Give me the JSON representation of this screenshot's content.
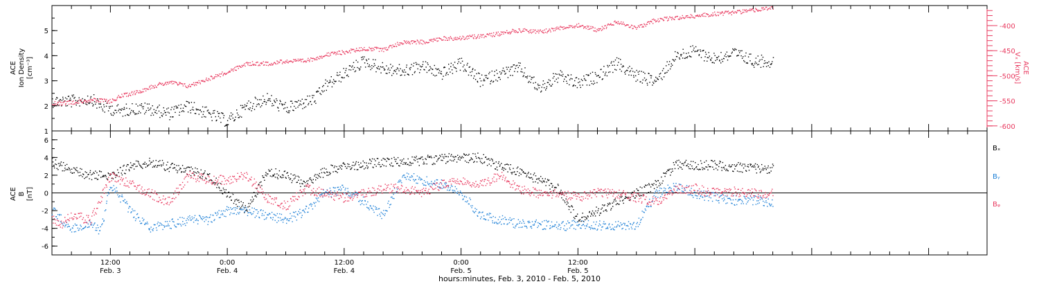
{
  "chart_data": [
    {
      "type": "scatter",
      "panel": "top",
      "ylabel_left_lines": [
        "ACE",
        "Ion Density",
        "[cm⁻³]"
      ],
      "ylabel_right_lines": [
        "ACE",
        "Vₓ [km/s]"
      ],
      "y_left_lim": [
        1,
        6
      ],
      "y_left_ticks": [
        "1",
        "2",
        "3",
        "4",
        "5"
      ],
      "y_right_lim": [
        -610,
        -360
      ],
      "y_right_ticks": [
        "-400",
        "-450",
        "-500",
        "-550",
        "-600"
      ],
      "colors": {
        "density": "#000000",
        "vx": "#e8385e"
      },
      "series": [
        {
          "key": "density",
          "axis": "left",
          "x_hours": [
            0,
            2,
            4,
            5,
            7,
            8,
            10,
            12,
            14,
            16,
            18,
            20,
            22,
            24,
            27,
            28,
            30,
            32,
            34,
            36,
            38,
            40,
            42,
            44,
            46,
            48,
            50,
            52,
            54,
            56,
            58,
            60,
            62,
            64,
            66,
            68,
            70,
            72,
            74
          ],
          "values": [
            2.2,
            2.2,
            2.3,
            2.0,
            1.8,
            1.9,
            1.9,
            1.7,
            2.0,
            1.7,
            1.4,
            2.0,
            2.3,
            1.9,
            2.3,
            2.8,
            3.3,
            3.8,
            3.5,
            3.4,
            3.6,
            3.3,
            3.7,
            3.0,
            3.3,
            3.5,
            2.7,
            3.2,
            2.9,
            3.2,
            3.7,
            3.2,
            3.0,
            4.0,
            4.2,
            3.9,
            4.1,
            3.8,
            3.8
          ]
        },
        {
          "key": "vx",
          "axis": "right",
          "x_hours": [
            0,
            2,
            4,
            6,
            7,
            9,
            10,
            12,
            14,
            16,
            18,
            20,
            22,
            24,
            26,
            28,
            30,
            32,
            34,
            36,
            38,
            40,
            42,
            44,
            46,
            48,
            50,
            52,
            54,
            56,
            58,
            60,
            62,
            64,
            66,
            68,
            70,
            72,
            74
          ],
          "values": [
            -555,
            -552,
            -548,
            -550,
            -540,
            -530,
            -522,
            -512,
            -520,
            -505,
            -492,
            -475,
            -475,
            -470,
            -470,
            -458,
            -452,
            -445,
            -447,
            -432,
            -432,
            -425,
            -424,
            -420,
            -415,
            -408,
            -412,
            -405,
            -398,
            -408,
            -392,
            -404,
            -388,
            -384,
            -380,
            -376,
            -373,
            -368,
            -365
          ]
        }
      ]
    },
    {
      "type": "scatter",
      "panel": "bottom",
      "ylabel_lines": [
        "ACE",
        "B",
        "[nT]"
      ],
      "ylim": [
        -7,
        7
      ],
      "y_ticks": [
        "6",
        "4",
        "2",
        "0",
        "-2",
        "-4",
        "-6"
      ],
      "zero_line": true,
      "legend": [
        {
          "key": "bx",
          "label": "Bₓ",
          "color": "#000000"
        },
        {
          "key": "by",
          "label": "Bᵧ",
          "color": "#1c7fd6"
        },
        {
          "key": "bz",
          "label": "Bᵩ",
          "color": "#e8385e"
        }
      ],
      "series": [
        {
          "key": "bx",
          "x_hours": [
            0,
            1,
            2,
            4,
            6,
            8,
            10,
            12,
            14,
            16,
            18,
            20,
            22,
            24,
            26,
            28,
            30,
            32,
            34,
            36,
            38,
            40,
            42,
            44,
            46,
            48,
            50,
            52,
            54,
            56,
            58,
            60,
            62,
            64,
            66,
            68,
            70,
            72,
            74
          ],
          "values": [
            3.5,
            3.0,
            2.5,
            2.0,
            2.0,
            3.0,
            3.5,
            3.0,
            2.5,
            2.0,
            0.0,
            -2.0,
            2.5,
            2.0,
            1.0,
            2.5,
            3.0,
            3.3,
            3.5,
            3.6,
            3.7,
            3.9,
            4.0,
            4.0,
            3.0,
            2.5,
            1.5,
            0.5,
            -3.0,
            -2.0,
            -1.0,
            0.0,
            1.0,
            3.2,
            3.2,
            3.2,
            3.0,
            2.8,
            2.8
          ]
        },
        {
          "key": "by",
          "x_hours": [
            0,
            1,
            2,
            4,
            5,
            6,
            8,
            10,
            12,
            14,
            16,
            18,
            20,
            22,
            24,
            26,
            28,
            30,
            32,
            34,
            36,
            38,
            40,
            42,
            44,
            46,
            48,
            50,
            52,
            54,
            56,
            58,
            60,
            62,
            64,
            66,
            68,
            70,
            72,
            74
          ],
          "values": [
            -2.0,
            -3.0,
            -4.0,
            -3.5,
            -4.2,
            1.0,
            -2.0,
            -4.0,
            -3.5,
            -3.0,
            -3.0,
            -2.0,
            -2.0,
            -2.5,
            -3.0,
            -2.0,
            0.0,
            0.5,
            -1.0,
            -2.5,
            2.0,
            1.5,
            1.0,
            0.0,
            -2.5,
            -3.0,
            -3.5,
            -3.5,
            -3.8,
            -3.5,
            -3.6,
            -3.6,
            -3.5,
            0.0,
            0.8,
            0.0,
            -0.5,
            -0.8,
            -0.8,
            -1.0
          ]
        },
        {
          "key": "bz",
          "x_hours": [
            0,
            1,
            2,
            4,
            6,
            8,
            10,
            12,
            14,
            16,
            18,
            20,
            22,
            24,
            26,
            28,
            30,
            32,
            34,
            36,
            38,
            40,
            42,
            44,
            46,
            48,
            50,
            52,
            54,
            56,
            58,
            60,
            62,
            64,
            66,
            68,
            70,
            72,
            74
          ],
          "values": [
            -3.0,
            -3.5,
            -2.5,
            -3.0,
            2.0,
            1.0,
            0.0,
            -1.0,
            2.0,
            1.5,
            1.5,
            2.0,
            -0.5,
            -1.5,
            0.5,
            0.0,
            -0.5,
            0.0,
            0.5,
            0.5,
            0.0,
            1.0,
            1.5,
            1.0,
            2.0,
            0.5,
            0.0,
            0.0,
            -0.5,
            0.0,
            0.0,
            -0.5,
            -1.0,
            0.5,
            0.5,
            0.0,
            0.2,
            0.0,
            0.0
          ]
        }
      ]
    },
    {
      "type": "time-axis",
      "xlabel": "hours:minutes, Feb.  3, 2010 - Feb.  5, 2010",
      "x_range_hours": [
        0,
        96
      ],
      "ticks": [
        {
          "x_hours": 6,
          "time": "12:00",
          "date": "Feb. 3"
        },
        {
          "x_hours": 18,
          "time": "0:00",
          "date": "Feb. 4"
        },
        {
          "x_hours": 30,
          "time": "12:00",
          "date": "Feb. 4"
        },
        {
          "x_hours": 42,
          "time": "0:00",
          "date": "Feb. 5"
        },
        {
          "x_hours": 54,
          "time": "12:00",
          "date": "Feb. 5"
        }
      ]
    }
  ]
}
